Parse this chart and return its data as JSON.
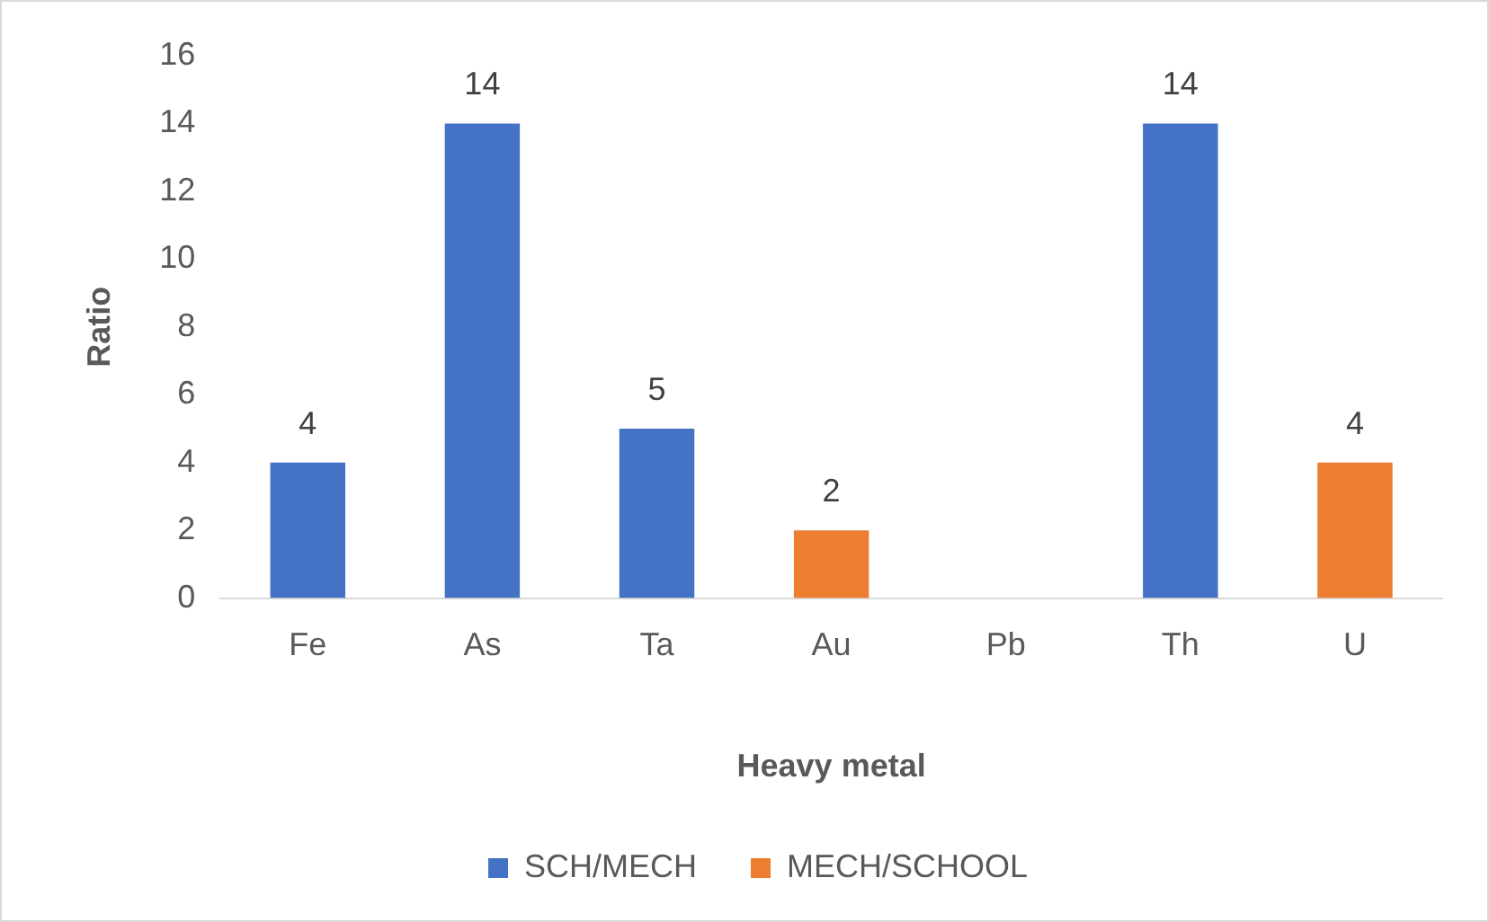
{
  "chart_data": {
    "type": "bar",
    "xlabel": "Heavy metal",
    "ylabel": "Ratio",
    "categories": [
      "Fe",
      "As",
      "Ta",
      "Au",
      "Pb",
      "Th",
      "U"
    ],
    "series": [
      {
        "name": "SCH/MECH",
        "color": "#4472c4",
        "values": [
          4,
          14,
          5,
          null,
          null,
          14,
          null
        ]
      },
      {
        "name": "MECH/SCHOOL",
        "color": "#ed7d31",
        "values": [
          null,
          null,
          null,
          2,
          null,
          null,
          4
        ]
      }
    ],
    "ylim": [
      0,
      16
    ],
    "yticks": [
      0,
      2,
      4,
      6,
      8,
      10,
      12,
      14,
      16
    ],
    "grid": false,
    "legend": "bottom",
    "data_labels": true
  }
}
